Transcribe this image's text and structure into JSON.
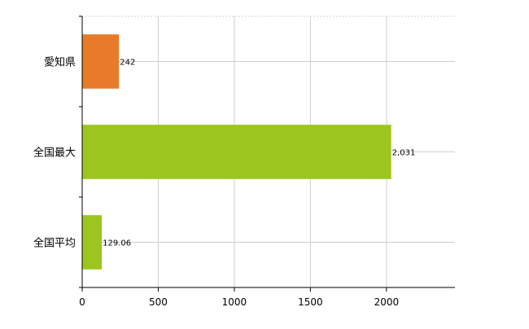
{
  "chart_data": {
    "type": "bar",
    "orientation": "horizontal",
    "categories": [
      "愛知県",
      "全国最大",
      "全国平均"
    ],
    "values": [
      242,
      2031,
      129.06
    ],
    "value_labels": [
      "242",
      "2,031",
      "129.06"
    ],
    "bar_colors": [
      "#e87b29",
      "#9cc61f",
      "#9cc61f"
    ],
    "xlim": [
      0,
      2450
    ],
    "x_ticks": [
      0,
      500,
      1000,
      1500,
      2000
    ],
    "x_tick_labels": [
      "0",
      "500",
      "1000",
      "1500",
      "2000"
    ],
    "grid": true,
    "title": "",
    "xlabel": "",
    "ylabel": ""
  }
}
